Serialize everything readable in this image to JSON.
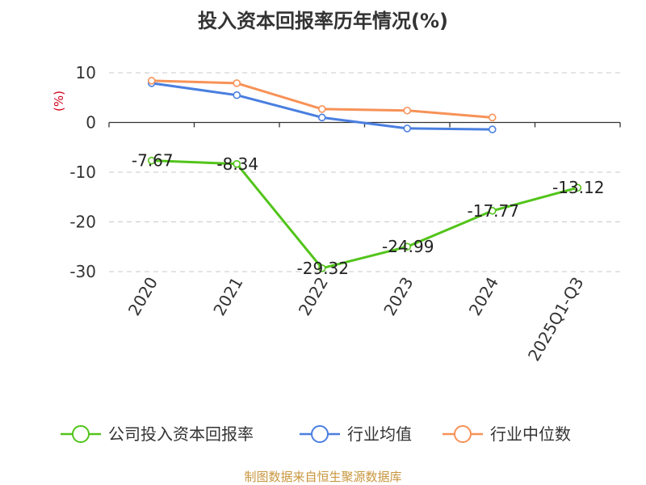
{
  "source_note": "制图数据来自恒生聚源数据库",
  "chart_data": {
    "type": "line",
    "title": "投入资本回报率历年情况(%)",
    "ylabel": "(%)",
    "xlabel": "",
    "categories": [
      "2020",
      "2021",
      "2022",
      "2023",
      "2024",
      "2025Q1-Q3"
    ],
    "ylim": [
      -30,
      10
    ],
    "yticks": [
      10,
      0,
      -10,
      -20,
      -30
    ],
    "grid": true,
    "legend_position": "bottom",
    "series": [
      {
        "name": "公司投入资本回报率",
        "color": "#52c41a",
        "values": [
          -7.67,
          -8.34,
          -29.32,
          -24.99,
          -17.77,
          -13.12
        ],
        "labels": [
          "-7.67",
          "-8.34",
          "-29.32",
          "-24.99",
          "-17.77",
          "-13.12"
        ]
      },
      {
        "name": "行业均值",
        "color": "#4a7fe0",
        "values": [
          7.9,
          5.5,
          1.0,
          -1.2,
          -1.4,
          null
        ]
      },
      {
        "name": "行业中位数",
        "color": "#f79257",
        "values": [
          8.4,
          7.9,
          2.7,
          2.4,
          1.0,
          null
        ]
      }
    ]
  }
}
